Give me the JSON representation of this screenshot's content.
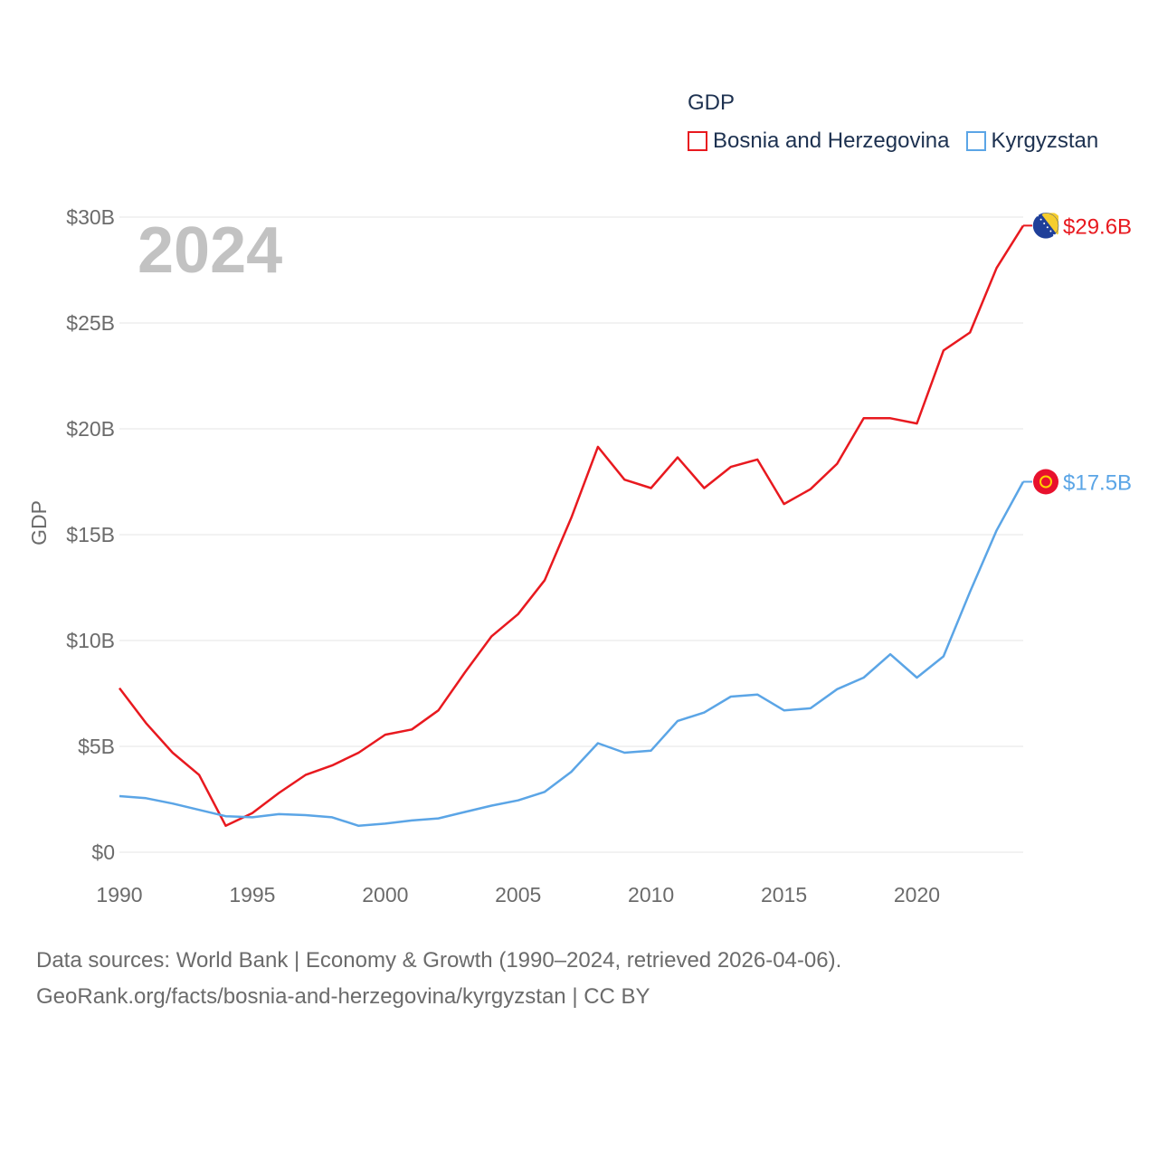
{
  "chart_data": {
    "type": "line",
    "title": "GDP",
    "ylabel": "GDP",
    "xlabel": "",
    "year_label": "2024",
    "xlim": [
      1990,
      2024
    ],
    "ylim": [
      0,
      30
    ],
    "x_ticks": [
      1990,
      1995,
      2000,
      2005,
      2010,
      2015,
      2020
    ],
    "x_tick_labels": [
      "1990",
      "1995",
      "2000",
      "2005",
      "2010",
      "2015",
      "2020"
    ],
    "y_ticks": [
      0,
      5,
      10,
      15,
      20,
      25,
      30
    ],
    "y_tick_labels": [
      "$0",
      "$5B",
      "$10B",
      "$15B",
      "$20B",
      "$25B",
      "$30B"
    ],
    "x": [
      1990,
      1991,
      1992,
      1993,
      1994,
      1995,
      1996,
      1997,
      1998,
      1999,
      2000,
      2001,
      2002,
      2003,
      2004,
      2005,
      2006,
      2007,
      2008,
      2009,
      2010,
      2011,
      2012,
      2013,
      2014,
      2015,
      2016,
      2017,
      2018,
      2019,
      2020,
      2021,
      2022,
      2023,
      2024
    ],
    "series": [
      {
        "name": "Bosnia and Herzegovina",
        "color": "#e8191f",
        "end_label": "$29.6B",
        "flag": "bosnia-flag",
        "values": [
          7.75,
          6.1,
          4.7,
          3.65,
          1.25,
          1.85,
          2.8,
          3.65,
          4.1,
          4.7,
          5.55,
          5.8,
          6.7,
          8.5,
          10.2,
          11.25,
          12.85,
          15.8,
          19.15,
          17.6,
          17.2,
          18.65,
          17.2,
          18.2,
          18.55,
          16.45,
          17.15,
          18.35,
          20.5,
          20.5,
          20.25,
          23.7,
          24.55,
          27.6,
          29.6
        ]
      },
      {
        "name": "Kyrgyzstan",
        "color": "#5ba5e6",
        "end_label": "$17.5B",
        "flag": "kyrgyzstan-flag",
        "values": [
          2.65,
          2.55,
          2.3,
          2.0,
          1.7,
          1.65,
          1.8,
          1.75,
          1.65,
          1.25,
          1.35,
          1.5,
          1.6,
          1.9,
          2.2,
          2.45,
          2.85,
          3.8,
          5.15,
          4.7,
          4.8,
          6.2,
          6.6,
          7.35,
          7.45,
          6.7,
          6.8,
          7.7,
          8.25,
          9.35,
          8.25,
          9.25,
          12.3,
          15.2,
          17.5
        ]
      }
    ]
  },
  "legend": {
    "title": "GDP",
    "items": [
      "Bosnia and Herzegovina",
      "Kyrgyzstan"
    ]
  },
  "footer": {
    "line1": "Data sources: World Bank | Economy & Growth (1990–2024, retrieved 2026-04-06).",
    "line2": "GeoRank.org/facts/bosnia-and-herzegovina/kyrgyzstan | CC BY"
  }
}
